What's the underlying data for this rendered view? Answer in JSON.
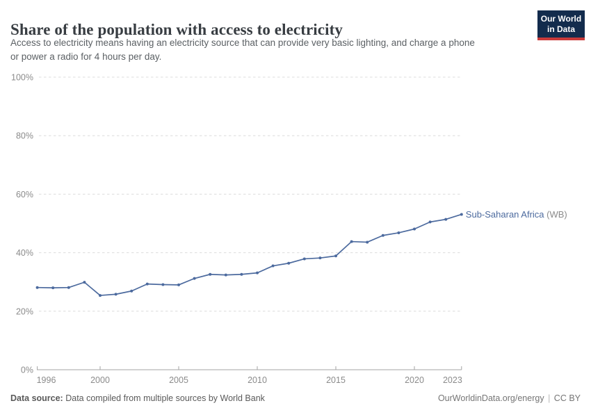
{
  "header": {
    "title": "Share of the population with access to electricity",
    "subtitle_line1": "Access to electricity means having an electricity source that can provide very basic lighting, and charge a phone",
    "subtitle_line2": "or power a radio for 4 hours per day."
  },
  "logo": {
    "line1": "Our World",
    "line2": "in Data",
    "bg_color": "#132c4d",
    "accent_color": "#ca3a3a"
  },
  "chart_data": {
    "type": "line",
    "title": "Share of the population with access to electricity",
    "x": [
      1996,
      1997,
      1998,
      1999,
      2000,
      2001,
      2002,
      2003,
      2004,
      2005,
      2006,
      2007,
      2008,
      2009,
      2010,
      2011,
      2012,
      2013,
      2014,
      2015,
      2016,
      2017,
      2018,
      2019,
      2020,
      2021,
      2022,
      2023
    ],
    "series": [
      {
        "name": "Sub-Saharan Africa (WB)",
        "label_main": "Sub-Saharan Africa",
        "label_suffix": " (WB)",
        "color": "#4c6a9e",
        "values": [
          28.1,
          28.0,
          28.1,
          29.9,
          25.4,
          25.8,
          26.9,
          29.3,
          29.1,
          29.0,
          31.2,
          32.6,
          32.4,
          32.6,
          33.1,
          35.5,
          36.4,
          37.9,
          38.2,
          38.9,
          43.8,
          43.6,
          45.9,
          46.8,
          48.1,
          50.5,
          51.4,
          53.1
        ]
      }
    ],
    "xlabel": "",
    "ylabel": "",
    "ylim": [
      0,
      100
    ],
    "y_unit": "%",
    "yticks": [
      0,
      20,
      40,
      60,
      80,
      100
    ],
    "xticks": [
      1996,
      2000,
      2005,
      2010,
      2015,
      2020,
      2023
    ],
    "grid": "horizontal-dashed",
    "legend_position": "end-of-line",
    "colors": {
      "line": "#4c6a9e",
      "axis_label": "#8b8b8b",
      "gridline": "#dcdcdc",
      "axis_line": "#a3a3a3",
      "series_suffix": "#8b8b8b"
    }
  },
  "footer": {
    "source_label": "Data source:",
    "source_text": "Data compiled from multiple sources by World Bank",
    "link": "OurWorldinData.org/energy",
    "separator": "|",
    "license": "CC BY"
  }
}
